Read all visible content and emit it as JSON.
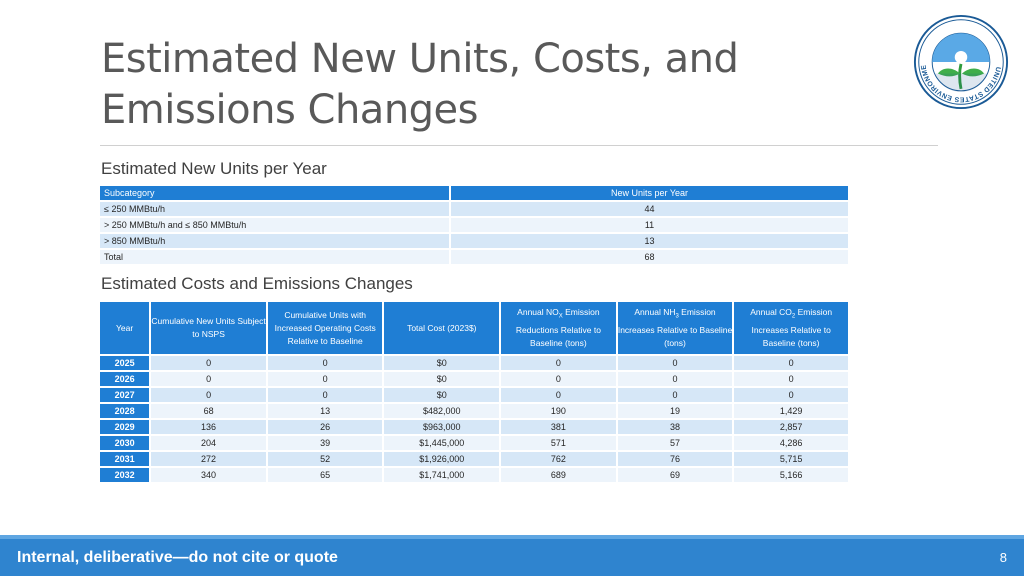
{
  "slide": {
    "title_line1": "Estimated New Units, Costs, and",
    "title_line2": "Emissions Changes",
    "logo_icon": "epa-seal-icon",
    "logo_text": "UNITED STATES ENVIRONMENTAL PROTECTION AGENCY"
  },
  "units_table": {
    "section_title": "Estimated New Units per Year",
    "headers": [
      "Subcategory",
      "New Units per Year"
    ],
    "rows": [
      {
        "subcategory": "≤ 250 MMBtu/h",
        "units": "44"
      },
      {
        "subcategory": "> 250 MMBtu/h and ≤ 850 MMBtu/h",
        "units": "11"
      },
      {
        "subcategory": "> 850 MMBtu/h",
        "units": "13"
      },
      {
        "subcategory": "Total",
        "units": "68"
      }
    ]
  },
  "costs_table": {
    "section_title": "Estimated Costs and Emissions Changes",
    "headers": {
      "year": "Year",
      "cum_units": "Cumulative New Units Subject to NSPS",
      "cum_op": "Cumulative Units with Increased Operating Costs Relative to Baseline",
      "total_cost": "Total Cost (2023$)",
      "nox_pre": "Annual NO",
      "nox_sub": "X",
      "nox_post": " Emission Reductions Relative to Baseline (tons)",
      "nh3_pre": "Annual NH",
      "nh3_sub": "3",
      "nh3_post": " Emission Increases Relative to Baseline (tons)",
      "co2_pre": "Annual CO",
      "co2_sub": "2",
      "co2_post": " Emission Increases Relative to Baseline (tons)"
    },
    "rows": [
      {
        "year": "2025",
        "cum_units": "0",
        "cum_op": "0",
        "total_cost": "$0",
        "nox": "0",
        "nh3": "0",
        "co2": "0"
      },
      {
        "year": "2026",
        "cum_units": "0",
        "cum_op": "0",
        "total_cost": "$0",
        "nox": "0",
        "nh3": "0",
        "co2": "0"
      },
      {
        "year": "2027",
        "cum_units": "0",
        "cum_op": "0",
        "total_cost": "$0",
        "nox": "0",
        "nh3": "0",
        "co2": "0"
      },
      {
        "year": "2028",
        "cum_units": "68",
        "cum_op": "13",
        "total_cost": "$482,000",
        "nox": "190",
        "nh3": "19",
        "co2": "1,429"
      },
      {
        "year": "2029",
        "cum_units": "136",
        "cum_op": "26",
        "total_cost": "$963,000",
        "nox": "381",
        "nh3": "38",
        "co2": "2,857"
      },
      {
        "year": "2030",
        "cum_units": "204",
        "cum_op": "39",
        "total_cost": "$1,445,000",
        "nox": "571",
        "nh3": "57",
        "co2": "4,286"
      },
      {
        "year": "2031",
        "cum_units": "272",
        "cum_op": "52",
        "total_cost": "$1,926,000",
        "nox": "762",
        "nh3": "76",
        "co2": "5,715"
      },
      {
        "year": "2032",
        "cum_units": "340",
        "cum_op": "65",
        "total_cost": "$1,741,000",
        "nox": "689",
        "nh3": "69",
        "co2": "5,166"
      }
    ]
  },
  "footer": {
    "text": "Internal, deliberative—do not cite or quote",
    "page_number": "8"
  },
  "colors": {
    "header_blue": "#1f7ed4",
    "row_light": "#d6e7f7",
    "row_lighter": "#edf4fb",
    "footer_blue": "#2f84cf"
  }
}
